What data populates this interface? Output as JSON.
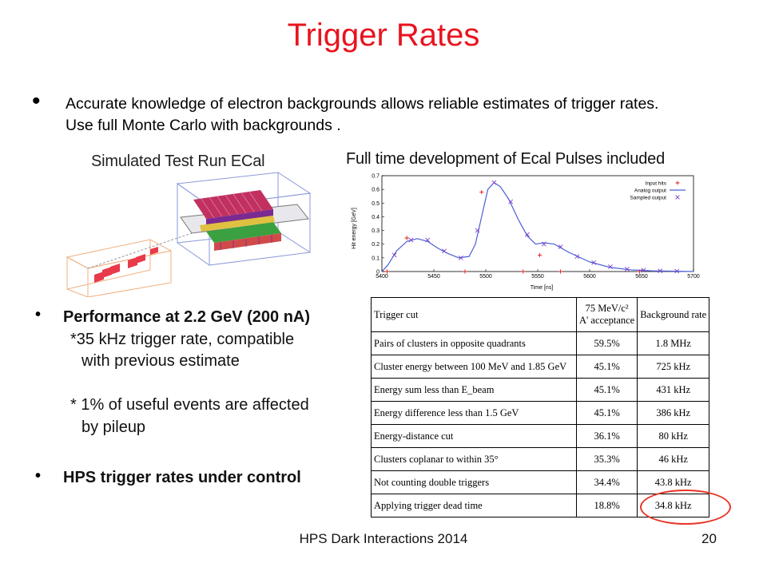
{
  "slide": {
    "title": "Trigger Rates",
    "bullet_dot": "•",
    "intro_text": "Accurate knowledge of electron backgrounds allows reliable estimates of trigger rates. Use full Monte Carlo with backgrounds .",
    "footer": "HPS Dark Interactions 2014",
    "page_number": "20"
  },
  "ecal_figure": {
    "title": "Simulated Test Run ECal"
  },
  "pulse_plot": {
    "heading": "Full time development of Ecal Pulses included",
    "chart_data": {
      "type": "line",
      "xlabel": "Time [ns]",
      "ylabel": "Hit energy [GeV]",
      "xlim": [
        5400,
        5700
      ],
      "ylim": [
        0,
        0.7
      ],
      "x_ticks": [
        "5400",
        "5450",
        "5500",
        "5550",
        "5600",
        "5650",
        "5700"
      ],
      "y_ticks": [
        "0",
        "0.1",
        "0.2",
        "0.3",
        "0.4",
        "0.5",
        "0.6",
        "0.7"
      ],
      "legend_position": "top-right",
      "series": [
        {
          "name": "Input hits",
          "kind": "scatter",
          "marker": "+",
          "color": "#e01818",
          "x": [
            5405,
            5424,
            5480,
            5496,
            5536,
            5552,
            5572,
            5648
          ],
          "y": [
            0.0,
            0.245,
            0.0,
            0.58,
            0.0,
            0.12,
            0.0,
            0.0
          ]
        },
        {
          "name": "Analog output",
          "kind": "line",
          "color": "#4a5fd6",
          "x": [
            5400,
            5406,
            5414,
            5424,
            5434,
            5444,
            5454,
            5464,
            5474,
            5484,
            5490,
            5496,
            5502,
            5508,
            5514,
            5522,
            5532,
            5540,
            5548,
            5556,
            5566,
            5580,
            5600,
            5620,
            5640,
            5660,
            5700
          ],
          "y": [
            0.0,
            0.05,
            0.15,
            0.22,
            0.24,
            0.22,
            0.17,
            0.13,
            0.1,
            0.11,
            0.2,
            0.4,
            0.6,
            0.65,
            0.62,
            0.53,
            0.37,
            0.26,
            0.2,
            0.21,
            0.2,
            0.14,
            0.07,
            0.03,
            0.012,
            0.005,
            0.0
          ]
        },
        {
          "name": "Sampled output",
          "kind": "scatter",
          "marker": "x",
          "color": "#7a3fcf",
          "x": [
            5412,
            5428,
            5444,
            5460,
            5476,
            5492,
            5508,
            5524,
            5540,
            5556,
            5572,
            5588,
            5604,
            5620,
            5636,
            5652,
            5668,
            5684
          ],
          "y": [
            0.12,
            0.23,
            0.23,
            0.15,
            0.1,
            0.3,
            0.65,
            0.51,
            0.27,
            0.2,
            0.18,
            0.11,
            0.065,
            0.035,
            0.018,
            0.01,
            0.005,
            0.003
          ]
        }
      ]
    }
  },
  "bullets": {
    "performance": "Performance at 2.2 GeV (200 nA)",
    "trigger_rate_line1": "*35 kHz trigger rate, compatible",
    "trigger_rate_line2": "with previous estimate",
    "pileup_line1": "* 1% of useful events are affected",
    "pileup_line2": "by pileup",
    "control": "HPS trigger rates under control"
  },
  "trigger_table": {
    "headers": {
      "cut": "Trigger cut",
      "acceptance_line1": "75 MeV/c²",
      "acceptance_line2": "A' acceptance",
      "background": "Background rate"
    },
    "rows": [
      {
        "cut": "Pairs of clusters in opposite quadrants",
        "acceptance": "59.5%",
        "rate": "1.8 MHz"
      },
      {
        "cut": "Cluster energy between 100 MeV and 1.85 GeV",
        "acceptance": "45.1%",
        "rate": "725 kHz"
      },
      {
        "cut": "Energy sum less than E_beam",
        "acceptance": "45.1%",
        "rate": "431 kHz"
      },
      {
        "cut": "Energy difference less than 1.5 GeV",
        "acceptance": "45.1%",
        "rate": "386 kHz"
      },
      {
        "cut": "Energy-distance cut",
        "acceptance": "36.1%",
        "rate": "80 kHz"
      },
      {
        "cut": "Clusters coplanar to within 35°",
        "acceptance": "35.3%",
        "rate": "46 kHz"
      },
      {
        "cut": "Not counting double triggers",
        "acceptance": "34.4%",
        "rate": "43.8 kHz"
      },
      {
        "cut": "Applying trigger dead time",
        "acceptance": "18.8%",
        "rate": "34.8 kHz"
      }
    ]
  },
  "colors": {
    "title": "#e8141e",
    "highlight_circle": "#e8352a"
  }
}
